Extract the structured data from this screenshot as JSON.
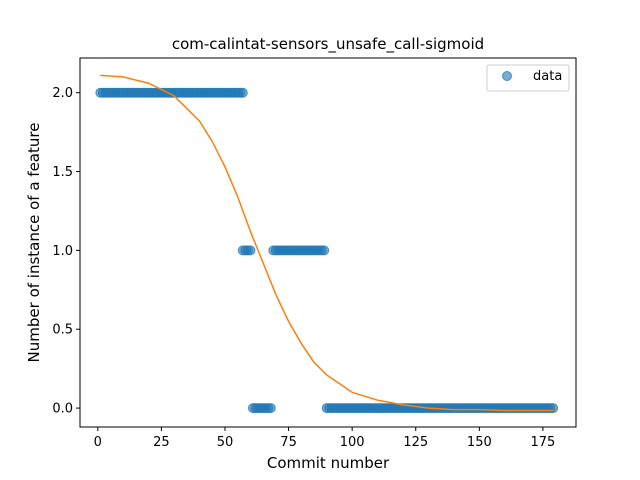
{
  "chart_data": {
    "type": "scatter",
    "title": "com-calintat-sensors_unsafe_call-sigmoid",
    "xlabel": "Commit number",
    "ylabel": "Number of instance of a feature",
    "xlim": [
      -7,
      188
    ],
    "ylim": [
      -0.12,
      2.22
    ],
    "xticks": [
      0,
      25,
      50,
      75,
      100,
      125,
      150,
      175
    ],
    "yticks": [
      0.0,
      0.5,
      1.0,
      1.5,
      2.0
    ],
    "xtick_labels": [
      "0",
      "25",
      "50",
      "75",
      "100",
      "125",
      "150",
      "175"
    ],
    "ytick_labels": [
      "0.0",
      "0.5",
      "1.0",
      "1.5",
      "2.0"
    ],
    "legend": {
      "position": "top-right",
      "entries": [
        {
          "label": "data",
          "marker": "circle",
          "color": "#1f77b4"
        }
      ]
    },
    "series": [
      {
        "name": "data",
        "kind": "scatter",
        "color": "#1f77b4",
        "segments": [
          {
            "x_from": 1,
            "x_to": 57,
            "y": 2
          },
          {
            "x_from": 57,
            "x_to": 60,
            "y": 1
          },
          {
            "x_from": 61,
            "x_to": 68,
            "y": 0
          },
          {
            "x_from": 69,
            "x_to": 89,
            "y": 1
          },
          {
            "x_from": 90,
            "x_to": 179,
            "y": 0
          }
        ]
      },
      {
        "kind": "line",
        "color": "#ff7f0e",
        "x": [
          1,
          10,
          20,
          30,
          40,
          45,
          50,
          55,
          60,
          65,
          70,
          75,
          80,
          85,
          90,
          100,
          110,
          120,
          130,
          140,
          150,
          160,
          170,
          179
        ],
        "y": [
          2.11,
          2.1,
          2.06,
          1.98,
          1.82,
          1.69,
          1.53,
          1.34,
          1.12,
          0.92,
          0.72,
          0.55,
          0.41,
          0.29,
          0.21,
          0.1,
          0.05,
          0.02,
          0.0,
          -0.01,
          -0.01,
          -0.015,
          -0.015,
          -0.015
        ]
      }
    ]
  }
}
